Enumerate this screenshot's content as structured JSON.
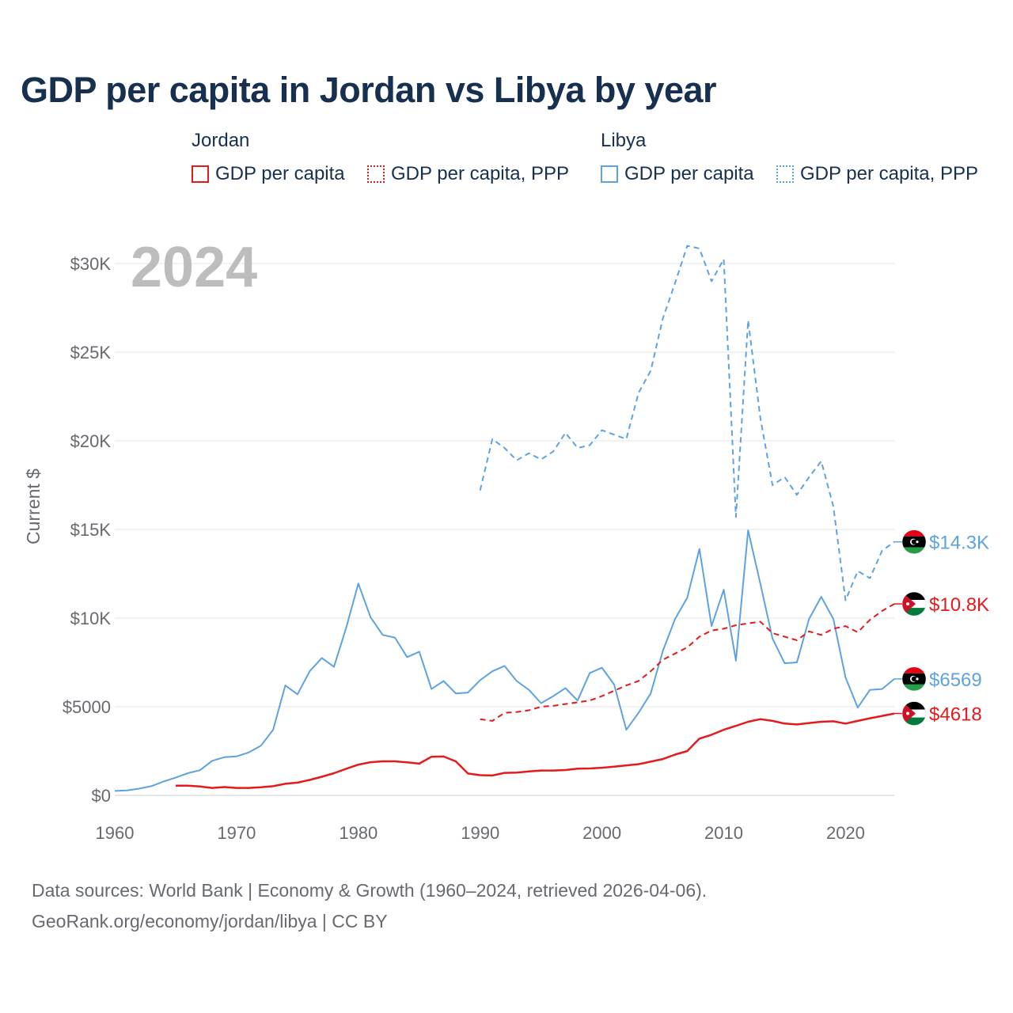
{
  "title": "GDP per capita in Jordan vs Libya by year",
  "legend": {
    "groups": [
      {
        "name": "Jordan",
        "items": [
          {
            "label": "GDP per capita",
            "color": "#e41a1c",
            "style": "solid"
          },
          {
            "label": "GDP per capita, PPP",
            "color": "#e41a1c",
            "style": "dotted"
          }
        ]
      },
      {
        "name": "Libya",
        "items": [
          {
            "label": "GDP per capita",
            "color": "#5ea3e0",
            "style": "solid"
          },
          {
            "label": "GDP per capita, PPP",
            "color": "#5ea3e0",
            "style": "dotted"
          }
        ]
      }
    ]
  },
  "year_overlay": "2024",
  "sources": {
    "line1": "Data sources: World Bank | Economy & Growth (1960–2024, retrieved 2026-04-06).",
    "line2": "GeoRank.org/economy/jordan/libya | CC BY"
  },
  "chart_data": {
    "type": "line",
    "title": "GDP per capita in Jordan vs Libya by year",
    "xlabel": "",
    "ylabel": "Current $",
    "xlim": [
      1960,
      2024
    ],
    "ylim": [
      0,
      31500
    ],
    "grid": true,
    "x_ticks": [
      {
        "value": 1960,
        "label": "1960"
      },
      {
        "value": 1970,
        "label": "1970"
      },
      {
        "value": 1980,
        "label": "1980"
      },
      {
        "value": 1990,
        "label": "1990"
      },
      {
        "value": 2000,
        "label": "2000"
      },
      {
        "value": 2010,
        "label": "2010"
      },
      {
        "value": 2020,
        "label": "2020"
      }
    ],
    "y_ticks": [
      {
        "value": 0,
        "label": "$0"
      },
      {
        "value": 5000,
        "label": "$5000"
      },
      {
        "value": 10000,
        "label": "$10K"
      },
      {
        "value": 15000,
        "label": "$15K"
      },
      {
        "value": 20000,
        "label": "$20K"
      },
      {
        "value": 25000,
        "label": "$25K"
      },
      {
        "value": 30000,
        "label": "$30K"
      }
    ],
    "series": [
      {
        "name": "Libya GDP per capita, PPP",
        "country": "Libya",
        "color": "#5ea3e0",
        "dash": "dashed",
        "start_year": 1990,
        "values": [
          17200,
          20100,
          19600,
          18900,
          19300,
          18950,
          19400,
          20450,
          19600,
          19750,
          20600,
          20350,
          20100,
          22700,
          23950,
          26900,
          28900,
          31000,
          30850,
          29000,
          30250,
          15700,
          26800,
          21300,
          17500,
          17950,
          16950,
          17950,
          18850,
          16300,
          11000,
          12650,
          12250,
          13800,
          14300
        ],
        "end_label": "$14.3K"
      },
      {
        "name": "Libya GDP per capita",
        "country": "Libya",
        "color": "#5ea3e0",
        "dash": "solid",
        "start_year": 1960,
        "values": [
          250,
          280,
          380,
          520,
          780,
          1000,
          1250,
          1420,
          1950,
          2150,
          2200,
          2420,
          2800,
          3700,
          6200,
          5700,
          7000,
          7750,
          7250,
          9450,
          11950,
          10050,
          9050,
          8900,
          7800,
          8100,
          6000,
          6450,
          5750,
          5800,
          6500,
          7000,
          7300,
          6450,
          5950,
          5200,
          5600,
          6050,
          5350,
          6900,
          7200,
          6250,
          3700,
          4650,
          5750,
          8150,
          9950,
          11150,
          13900,
          9550,
          11600,
          7600,
          14950,
          11950,
          8850,
          7450,
          7500,
          9950,
          11200,
          9950,
          6650,
          4950,
          5950,
          6000,
          6569
        ],
        "end_label": "$6569"
      },
      {
        "name": "Jordan GDP per capita, PPP",
        "country": "Jordan",
        "color": "#e41a1c",
        "dash": "dashed",
        "start_year": 1990,
        "values": [
          4300,
          4200,
          4650,
          4700,
          4800,
          5000,
          5050,
          5150,
          5250,
          5350,
          5600,
          5900,
          6200,
          6450,
          7000,
          7650,
          8000,
          8350,
          8950,
          9300,
          9400,
          9600,
          9700,
          9800,
          9150,
          8950,
          8750,
          9250,
          9050,
          9400,
          9550,
          9200,
          9900,
          10400,
          10800
        ],
        "end_label": "$10.8K"
      },
      {
        "name": "Jordan GDP per capita",
        "country": "Jordan",
        "color": "#e41a1c",
        "dash": "solid",
        "start_year": 1965,
        "values": [
          550,
          550,
          500,
          420,
          470,
          420,
          420,
          460,
          520,
          650,
          720,
          870,
          1050,
          1250,
          1500,
          1730,
          1870,
          1920,
          1920,
          1860,
          1790,
          2180,
          2190,
          1920,
          1230,
          1140,
          1120,
          1270,
          1280,
          1350,
          1400,
          1400,
          1430,
          1510,
          1520,
          1560,
          1620,
          1690,
          1760,
          1900,
          2050,
          2300,
          2500,
          3200,
          3420,
          3700,
          3920,
          4150,
          4300,
          4200,
          4050,
          4000,
          4080,
          4150,
          4180,
          4050,
          4200,
          4350,
          4480,
          4618
        ],
        "end_label": "$4618"
      }
    ]
  }
}
